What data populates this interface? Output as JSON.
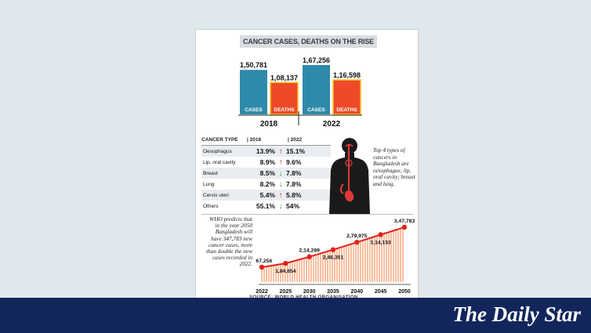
{
  "title": "CANCER CASES, DEATHS ON THE RISE",
  "colors": {
    "cases": "#2f8aaa",
    "deaths": "#ee4a2a",
    "bar_outline": "#f3c318",
    "line": "#e0241c",
    "area": "#f6a274",
    "up_arrow": "#d0211b",
    "down_arrow": "#3a9a3a",
    "footer": "#12265b"
  },
  "chart_data": [
    {
      "type": "bar",
      "categories": [
        "2018",
        "2022"
      ],
      "series": [
        {
          "name": "CASES",
          "values": [
            150781,
            167256
          ],
          "labels": [
            "1,50,781",
            "1,67,256"
          ]
        },
        {
          "name": "DEATHS",
          "values": [
            108137,
            116598
          ],
          "labels": [
            "1,08,137",
            "1,16,598"
          ]
        }
      ]
    },
    {
      "type": "table",
      "columns": [
        "CANCER TYPE",
        "2018",
        "2022"
      ],
      "rows": [
        {
          "type": "Oesophagus",
          "y2018": "13.9%",
          "y2022": "15.1%",
          "trend": "up"
        },
        {
          "type": "Lip, oral cavity",
          "y2018": "8.9%",
          "y2022": "9.6%",
          "trend": "up"
        },
        {
          "type": "Breast",
          "y2018": "8.5%",
          "y2022": "7.8%",
          "trend": "down"
        },
        {
          "type": "Lung",
          "y2018": "8.2%",
          "y2022": "7.8%",
          "trend": "down"
        },
        {
          "type": "Cervix uteri",
          "y2018": "5.4%",
          "y2022": "5.8%",
          "trend": "up"
        },
        {
          "type": "Others",
          "y2018": "55.1%",
          "y2022": "54%",
          "trend": "down"
        }
      ]
    },
    {
      "type": "area",
      "x": [
        "2022",
        "2025",
        "2030",
        "2035",
        "2040",
        "2045",
        "2050"
      ],
      "values": [
        167256,
        184654,
        214289,
        246351,
        279975,
        314153,
        347783
      ],
      "labels": [
        "1,67,256",
        "1,84,654",
        "2,14,289",
        "2,46,351",
        "2,79,975",
        "3,14,153",
        "3,47,783"
      ]
    }
  ],
  "notes": {
    "top4": "Top 4 types of cancers in Bangladesh are oesophagus; lip, oral cavity; breast and lung.",
    "who": "WHO predicts that in the year 2050 Bangladesh will have 347,783 new cancer cases, more than double the new cases recorded in 2022."
  },
  "source": "SOURCE: WORLD HEALTH ORGANISATION",
  "logo": "The Daily Star"
}
